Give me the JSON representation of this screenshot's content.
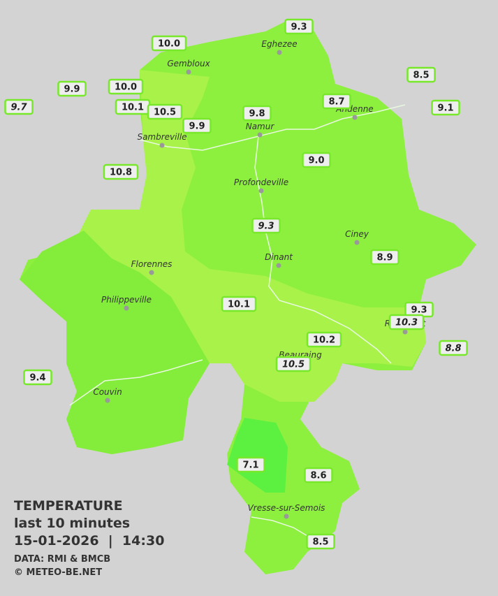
{
  "legend": {
    "title": "TEMPERATURE",
    "subtitle": "last 10 minutes",
    "datetime": "15-01-2026  |  14:30",
    "source": "DATA: RMI & BMCB",
    "credit": "© METEO-BE.NET"
  },
  "cities": [
    "Eghezee",
    "Gembloux",
    "Andenne",
    "Namur",
    "Sambreville",
    "Profondeville",
    "Ciney",
    "Dinant",
    "Florennes",
    "Philippeville",
    "Rochefort",
    "Beauraing",
    "Couvin",
    "Vresse-sur-Semois"
  ],
  "stations": [
    {
      "label": "9.3",
      "italic": false
    },
    {
      "label": "10.0",
      "italic": false
    },
    {
      "label": "9.9",
      "italic": false
    },
    {
      "label": "10.0",
      "italic": false
    },
    {
      "label": "8.5",
      "italic": false
    },
    {
      "label": "9.7",
      "italic": true
    },
    {
      "label": "10.1",
      "italic": false
    },
    {
      "label": "10.5",
      "italic": false
    },
    {
      "label": "8.7",
      "italic": false
    },
    {
      "label": "9.8",
      "italic": false
    },
    {
      "label": "9.1",
      "italic": false
    },
    {
      "label": "9.9",
      "italic": false
    },
    {
      "label": "9.0",
      "italic": false
    },
    {
      "label": "10.8",
      "italic": false
    },
    {
      "label": "9.3",
      "italic": true
    },
    {
      "label": "8.9",
      "italic": false
    },
    {
      "label": "10.1",
      "italic": false
    },
    {
      "label": "9.3",
      "italic": false
    },
    {
      "label": "10.3",
      "italic": true
    },
    {
      "label": "10.2",
      "italic": false
    },
    {
      "label": "8.8",
      "italic": true
    },
    {
      "label": "10.5",
      "italic": true
    },
    {
      "label": "9.4",
      "italic": false
    },
    {
      "label": "7.1",
      "italic": false
    },
    {
      "label": "8.6",
      "italic": false
    },
    {
      "label": "8.5",
      "italic": false
    }
  ]
}
